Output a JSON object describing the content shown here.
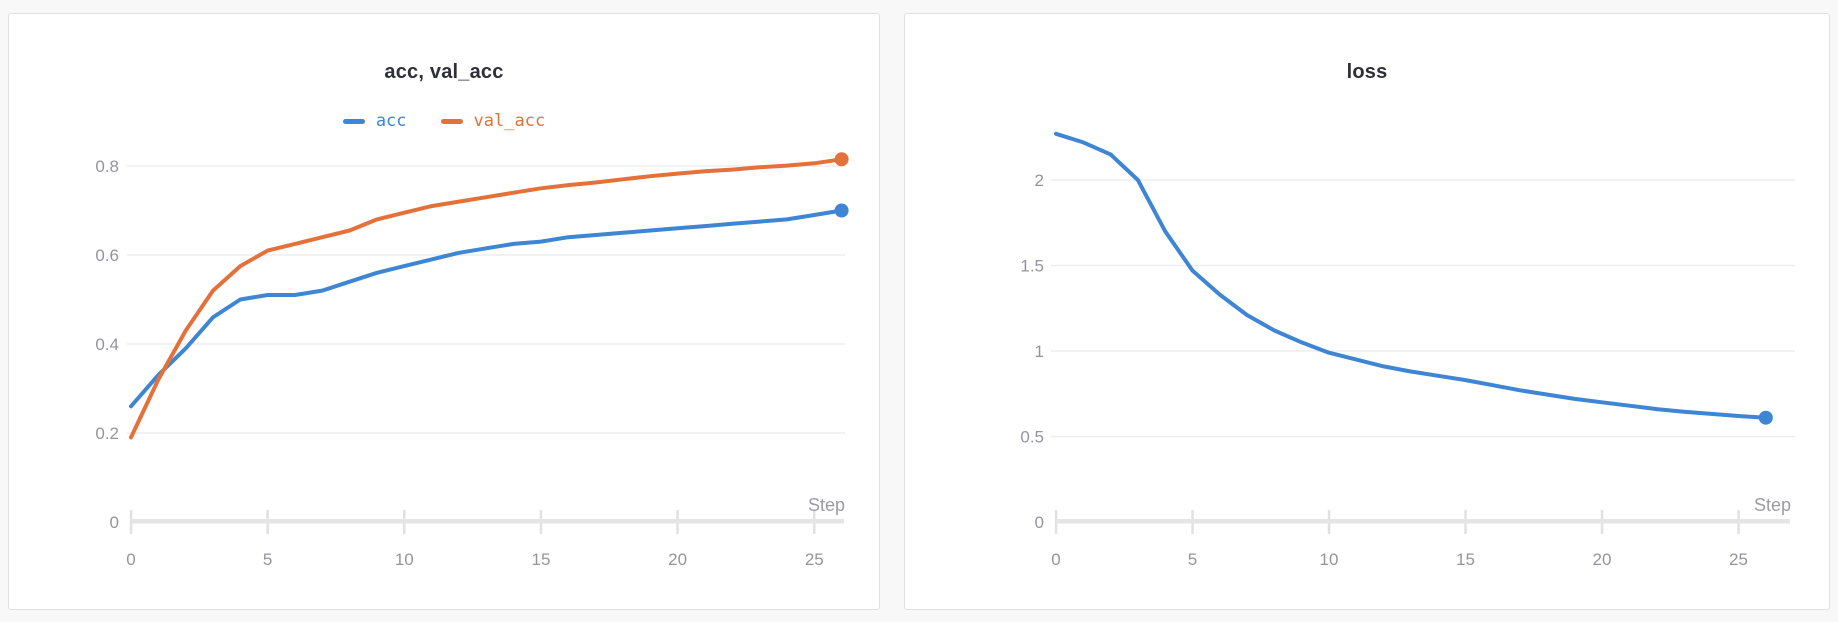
{
  "page": {
    "background": "#f8f8f8",
    "card_border": "#e0e0e0"
  },
  "chart_data": [
    {
      "type": "line",
      "title": "acc, val_acc",
      "xlabel": "Step",
      "legend_position": "top-center",
      "grid": true,
      "xlim": [
        0,
        26
      ],
      "ylim": [
        0,
        0.85
      ],
      "x_ticks": [
        0,
        5,
        10,
        15,
        20,
        25
      ],
      "y_ticks": [
        {
          "v": 0,
          "label": "0"
        },
        {
          "v": 0.2,
          "label": "0.2"
        },
        {
          "v": 0.4,
          "label": "0.4"
        },
        {
          "v": 0.6,
          "label": "0.6"
        },
        {
          "v": 0.8,
          "label": "0.8"
        }
      ],
      "x": [
        0,
        1,
        2,
        3,
        4,
        5,
        6,
        7,
        8,
        9,
        10,
        11,
        12,
        13,
        14,
        15,
        16,
        17,
        18,
        19,
        20,
        21,
        22,
        23,
        24,
        25,
        26
      ],
      "series": [
        {
          "name": "acc",
          "color": "#3e85d3",
          "values": [
            0.26,
            0.33,
            0.39,
            0.46,
            0.5,
            0.51,
            0.51,
            0.52,
            0.54,
            0.56,
            0.575,
            0.59,
            0.605,
            0.615,
            0.625,
            0.63,
            0.64,
            0.645,
            0.65,
            0.655,
            0.66,
            0.665,
            0.67,
            0.675,
            0.68,
            0.69,
            0.7
          ]
        },
        {
          "name": "val_acc",
          "color": "#e4703a",
          "values": [
            0.19,
            0.32,
            0.43,
            0.52,
            0.575,
            0.61,
            0.625,
            0.64,
            0.655,
            0.68,
            0.695,
            0.71,
            0.72,
            0.73,
            0.74,
            0.75,
            0.757,
            0.763,
            0.77,
            0.777,
            0.783,
            0.788,
            0.792,
            0.797,
            0.801,
            0.806,
            0.815
          ]
        }
      ]
    },
    {
      "type": "line",
      "title": "loss",
      "xlabel": "Step",
      "legend_position": "none",
      "grid": true,
      "xlim": [
        0,
        26
      ],
      "ylim": [
        0,
        2.35
      ],
      "x_ticks": [
        0,
        5,
        10,
        15,
        20,
        25
      ],
      "y_ticks": [
        {
          "v": 0,
          "label": "0"
        },
        {
          "v": 0.5,
          "label": "0.5"
        },
        {
          "v": 1,
          "label": "1"
        },
        {
          "v": 1.5,
          "label": "1.5"
        },
        {
          "v": 2,
          "label": "2"
        }
      ],
      "x": [
        0,
        1,
        2,
        3,
        4,
        5,
        6,
        7,
        8,
        9,
        10,
        11,
        12,
        13,
        14,
        15,
        16,
        17,
        18,
        19,
        20,
        21,
        22,
        23,
        24,
        25,
        26
      ],
      "series": [
        {
          "name": "loss",
          "color": "#3e85d3",
          "values": [
            2.27,
            2.22,
            2.15,
            2.0,
            1.7,
            1.47,
            1.33,
            1.21,
            1.12,
            1.05,
            0.99,
            0.95,
            0.91,
            0.88,
            0.855,
            0.83,
            0.8,
            0.77,
            0.745,
            0.72,
            0.7,
            0.68,
            0.66,
            0.645,
            0.632,
            0.62,
            0.61
          ]
        }
      ]
    }
  ]
}
